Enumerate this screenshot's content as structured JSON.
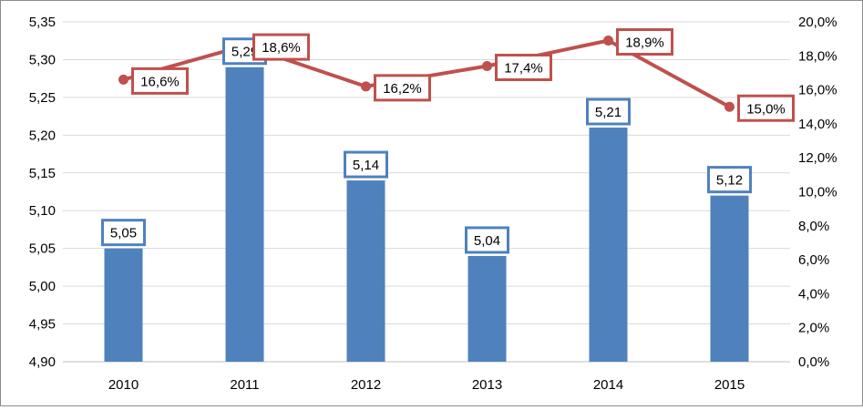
{
  "chart_data": {
    "type": "bar+line",
    "title": "",
    "categories": [
      "2010",
      "2011",
      "2012",
      "2013",
      "2014",
      "2015"
    ],
    "series": [
      {
        "name": "bar",
        "type": "bar",
        "axis": "left",
        "values": [
          5.05,
          5.29,
          5.14,
          5.04,
          5.21,
          5.12
        ],
        "labels": [
          "5,05",
          "5,29",
          "5,14",
          "5,04",
          "5,21",
          "5,12"
        ],
        "color": "#4f81bd"
      },
      {
        "name": "line",
        "type": "line",
        "axis": "right",
        "values": [
          16.6,
          18.6,
          16.2,
          17.4,
          18.9,
          15.0
        ],
        "labels": [
          "16,6%",
          "18,6%",
          "16,2%",
          "17,4%",
          "18,9%",
          "15,0%"
        ],
        "color": "#c0504d"
      }
    ],
    "y_left": {
      "min": 4.9,
      "max": 5.35,
      "ticks": [
        "4,90",
        "4,95",
        "5,00",
        "5,05",
        "5,10",
        "5,15",
        "5,20",
        "5,25",
        "5,30",
        "5,35"
      ]
    },
    "y_right": {
      "min": 0,
      "max": 20,
      "ticks": [
        "0,0%",
        "2,0%",
        "4,0%",
        "6,0%",
        "8,0%",
        "10,0%",
        "12,0%",
        "14,0%",
        "16,0%",
        "18,0%",
        "20,0%"
      ]
    },
    "grid": true,
    "xlabel": "",
    "ylabel": ""
  }
}
